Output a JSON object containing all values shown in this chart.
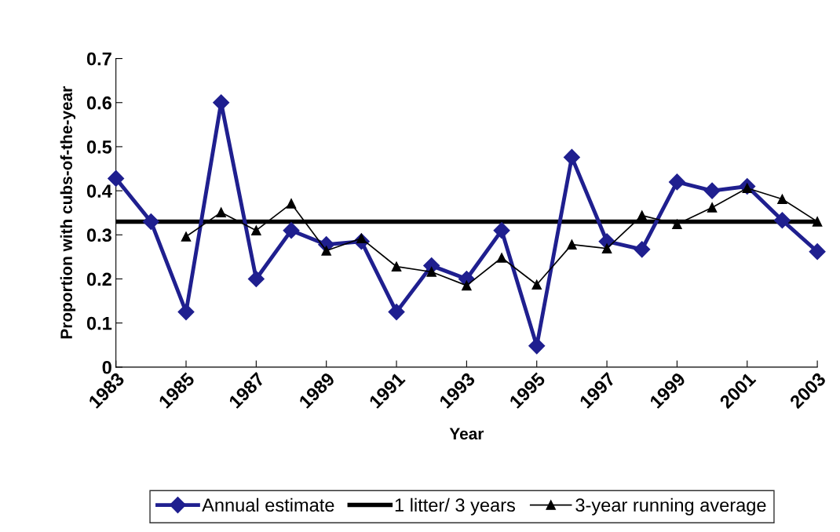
{
  "chart_data": {
    "type": "line",
    "xlabel": "Year",
    "ylabel": "Proportion with cubs-of-the-year",
    "xlim": [
      1983,
      2003
    ],
    "xticks": [
      1983,
      1985,
      1987,
      1989,
      1991,
      1993,
      1995,
      1997,
      1999,
      2001,
      2003
    ],
    "ylim": [
      0,
      0.7
    ],
    "yticks": [
      0,
      0.1,
      0.2,
      0.3,
      0.4,
      0.5,
      0.6,
      0.7
    ],
    "grid": false,
    "legend": "bottom",
    "series": [
      {
        "name": "Annual estimate",
        "color": "#1f1f8f",
        "marker": "diamond",
        "x": [
          1983,
          1984,
          1985,
          1986,
          1987,
          1988,
          1989,
          1990,
          1991,
          1992,
          1993,
          1994,
          1995,
          1996,
          1997,
          1998,
          1999,
          2000,
          2001,
          2002,
          2003
        ],
        "values": [
          0.428,
          0.33,
          0.125,
          0.6,
          0.2,
          0.31,
          0.278,
          0.285,
          0.125,
          0.23,
          0.2,
          0.31,
          0.048,
          0.476,
          0.285,
          0.267,
          0.42,
          0.4,
          0.41,
          0.333,
          0.262
        ]
      },
      {
        "name": "3-year running average",
        "color": "#000000",
        "marker": "triangle",
        "x": [
          1985,
          1986,
          1987,
          1988,
          1989,
          1990,
          1991,
          1992,
          1993,
          1994,
          1995,
          1996,
          1997,
          1998,
          1999,
          2000,
          2001,
          2002,
          2003
        ],
        "values": [
          0.296,
          0.351,
          0.31,
          0.371,
          0.264,
          0.292,
          0.228,
          0.216,
          0.185,
          0.248,
          0.187,
          0.278,
          0.269,
          0.344,
          0.324,
          0.362,
          0.406,
          0.381,
          0.33
        ]
      }
    ],
    "ref_lines": [
      {
        "axis": "y",
        "value": 0.33,
        "label": "1 litter/ 3 years",
        "color": "#000000",
        "line_style": "solid"
      }
    ]
  }
}
